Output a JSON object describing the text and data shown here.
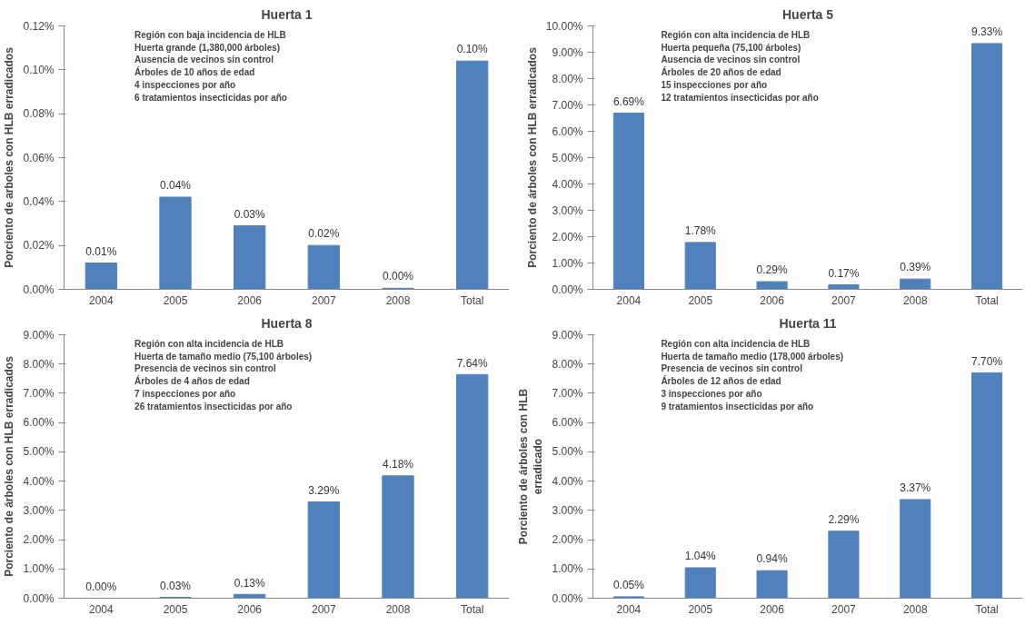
{
  "chart_data": [
    {
      "type": "bar",
      "title": "Huerta 1",
      "ylabel": "Porciento de arboles con HLB erradicados",
      "categories": [
        "2004",
        "2005",
        "2006",
        "2007",
        "2008",
        "Total"
      ],
      "values": [
        0.012,
        0.042,
        0.029,
        0.02,
        0.0005,
        0.104
      ],
      "value_labels": [
        "0.01%",
        "0.04%",
        "0.03%",
        "0.02%",
        "0.00%",
        "0.10%"
      ],
      "color": "#4f81bd",
      "ylim": [
        0,
        0.12
      ],
      "yticks": [
        {
          "value": 0,
          "label": "0.00%"
        },
        {
          "value": 0.02,
          "label": "0.02%"
        },
        {
          "value": 0.04,
          "label": "0.04%"
        },
        {
          "value": 0.06,
          "label": "0.06%"
        },
        {
          "value": 0.08,
          "label": "0.08%"
        },
        {
          "value": 0.1,
          "label": "0.10%"
        },
        {
          "value": 0.12,
          "label": "0.12%"
        }
      ],
      "grid": false,
      "annotations": [
        "Región con baja incidencia de HLB\nHuerta grande (1,380,000 árboles)\nAusencia de vecinos sin control\nÁrboles de 10 años de edad\n4 inspecciones por año\n6 tratamientos insecticidas por año"
      ]
    },
    {
      "type": "bar",
      "title": "Huerta 5",
      "ylabel": "Porciento de árboles con HLB erradicados",
      "categories": [
        "2004",
        "2005",
        "2006",
        "2007",
        "2008",
        "Total"
      ],
      "values": [
        6.69,
        1.78,
        0.29,
        0.17,
        0.39,
        9.33
      ],
      "value_labels": [
        "6.69%",
        "1.78%",
        "0.29%",
        "0.17%",
        "0.39%",
        "9.33%"
      ],
      "color": "#4f81bd",
      "ylim": [
        0,
        10
      ],
      "yticks": [
        {
          "value": 0,
          "label": "0.00%"
        },
        {
          "value": 1,
          "label": "1.00%"
        },
        {
          "value": 2,
          "label": "2.00%"
        },
        {
          "value": 3,
          "label": "3.00%"
        },
        {
          "value": 4,
          "label": "4.00%"
        },
        {
          "value": 5,
          "label": "5.00%"
        },
        {
          "value": 6,
          "label": "6.00%"
        },
        {
          "value": 7,
          "label": "7.00%"
        },
        {
          "value": 8,
          "label": "8.00%"
        },
        {
          "value": 9,
          "label": "9.00%"
        },
        {
          "value": 10,
          "label": "10.00%"
        }
      ],
      "grid": false,
      "annotations": [
        "Región con alta incidencia de HLB\nHuerta pequeña (75,100 árboles)\nAusencia de vecinos sin control\nÁrboles de 20 años de edad\n15 inspecciones por año\n12 tratamientos insecticidas por año"
      ]
    },
    {
      "type": "bar",
      "title": "Huerta 8",
      "ylabel": "Porciento de árboles con HLB erradicados",
      "categories": [
        "2004",
        "2005",
        "2006",
        "2007",
        "2008",
        "Total"
      ],
      "values": [
        0.0,
        0.03,
        0.13,
        3.29,
        4.18,
        7.64
      ],
      "value_labels": [
        "0.00%",
        "0.03%",
        "0.13%",
        "3.29%",
        "4.18%",
        "7.64%"
      ],
      "color": "#4f81bd",
      "ylim": [
        0,
        9
      ],
      "yticks": [
        {
          "value": 0,
          "label": "0.00%"
        },
        {
          "value": 1,
          "label": "1.00%"
        },
        {
          "value": 2,
          "label": "2.00%"
        },
        {
          "value": 3,
          "label": "3.00%"
        },
        {
          "value": 4,
          "label": "4.00%"
        },
        {
          "value": 5,
          "label": "5.00%"
        },
        {
          "value": 6,
          "label": "6.00%"
        },
        {
          "value": 7,
          "label": "7.00%"
        },
        {
          "value": 8,
          "label": "8.00%"
        },
        {
          "value": 9,
          "label": "9.00%"
        }
      ],
      "grid": false,
      "annotations": [
        "Región con alta incidencia de HLB\nHuerta de  tamaño medio (75,100 árboles)\nPresencia de vecinos sin control\nÁrboles de 4 años de edad\n7 inspecciones por año\n26 tratamientos insecticidas por año"
      ]
    },
    {
      "type": "bar",
      "title": "Huerta 11",
      "ylabel": "Porciento de árboles con HLB\nerradicado",
      "categories": [
        "2004",
        "2005",
        "2006",
        "2007",
        "2008",
        "Total"
      ],
      "values": [
        0.05,
        1.04,
        0.94,
        2.29,
        3.37,
        7.7
      ],
      "value_labels": [
        "0.05%",
        "1.04%",
        "0.94%",
        "2.29%",
        "3.37%",
        "7.70%"
      ],
      "color": "#4f81bd",
      "ylim": [
        0,
        9
      ],
      "yticks": [
        {
          "value": 0,
          "label": "0.00%"
        },
        {
          "value": 1,
          "label": "1.00%"
        },
        {
          "value": 2,
          "label": "2.00%"
        },
        {
          "value": 3,
          "label": "3.00%"
        },
        {
          "value": 4,
          "label": "4.00%"
        },
        {
          "value": 5,
          "label": "5.00%"
        },
        {
          "value": 6,
          "label": "6.00%"
        },
        {
          "value": 7,
          "label": "7.00%"
        },
        {
          "value": 8,
          "label": "8.00%"
        },
        {
          "value": 9,
          "label": "9.00%"
        }
      ],
      "grid": false,
      "annotations": [
        "Región con alta incidencia de HLB\nHuerta de  tamaño medio (178,000 árboles)\nPresencia de vecinos sin control\nÁrboles de 12 años de edad\n3 inspecciones por año\n9 tratamientos insecticidas por año"
      ]
    }
  ]
}
